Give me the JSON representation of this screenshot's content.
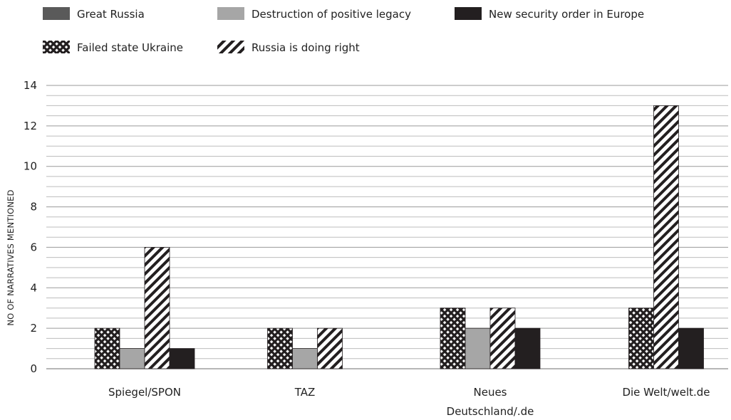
{
  "chart_data": {
    "type": "bar",
    "ylabel": "NO OF NARRATIVES MENTIONED",
    "xlabel": "",
    "ylim": [
      0,
      14
    ],
    "y_ticks": [
      0,
      2,
      4,
      6,
      8,
      10,
      12,
      14
    ],
    "grid": true,
    "legend_position": "top-left",
    "categories": [
      {
        "lines": [
          "Spiegel/SPON"
        ]
      },
      {
        "lines": [
          "TAZ"
        ]
      },
      {
        "lines": [
          "Neues",
          "Deutschland/.de"
        ]
      },
      {
        "lines": [
          "Die Welt/welt.de"
        ]
      }
    ],
    "series": [
      {
        "name": "Great Russia",
        "pattern": "solid-darkgray",
        "color": "#5a5a5a",
        "values": [
          0,
          0,
          0,
          0
        ]
      },
      {
        "name": "Destruction of positive legacy",
        "pattern": "solid-lightgray",
        "color": "#a6a6a6",
        "values": [
          1,
          1,
          2,
          0
        ]
      },
      {
        "name": "New security order in Europe",
        "pattern": "solid-black",
        "color": "#231f20",
        "values": [
          1,
          0,
          2,
          2
        ]
      },
      {
        "name": "Failed state Ukraine",
        "pattern": "crosshatch",
        "color": "#231f20",
        "values": [
          2,
          2,
          3,
          3
        ]
      },
      {
        "name": "Russia is doing right",
        "pattern": "diagonal",
        "color": "#231f20",
        "values": [
          6,
          2,
          3,
          13
        ]
      }
    ],
    "bar_order": [
      [
        "Failed state Ukraine",
        "Destruction of positive legacy",
        "Russia is doing right",
        "New security order in Europe"
      ],
      [
        "Failed state Ukraine",
        "Destruction of positive legacy",
        "Russia is doing right"
      ],
      [
        "Failed state Ukraine",
        "Destruction of positive legacy",
        "Russia is doing right",
        "New security order in Europe"
      ],
      [
        "Failed state Ukraine",
        "Russia is doing right",
        "New security order in Europe"
      ]
    ]
  }
}
